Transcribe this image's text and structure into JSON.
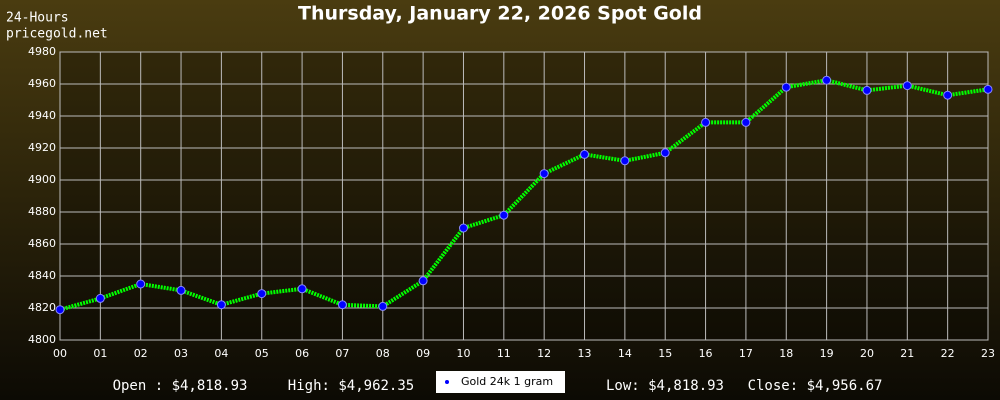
{
  "chart_data": {
    "type": "line",
    "title": "Thursday, January 22, 2026 Spot Gold",
    "corner_labels": [
      "24-Hours",
      "pricegold.net"
    ],
    "categories": [
      "00",
      "01",
      "02",
      "03",
      "04",
      "05",
      "06",
      "07",
      "08",
      "09",
      "10",
      "11",
      "12",
      "13",
      "14",
      "15",
      "16",
      "17",
      "18",
      "19",
      "20",
      "21",
      "22",
      "23"
    ],
    "series": [
      {
        "name": "Gold 24k 1 gram",
        "color": "#00ff00",
        "marker_color": "#0000ff",
        "values": [
          4818.93,
          4826,
          4835,
          4831,
          4822,
          4829,
          4832,
          4822,
          4821,
          4837,
          4870,
          4878,
          4904,
          4916,
          4912,
          4917,
          4936,
          4936,
          4958,
          4962.35,
          4956,
          4959,
          4953,
          4956.67
        ]
      }
    ],
    "ylim": [
      4800,
      4980
    ],
    "yticks": [
      4800,
      4820,
      4840,
      4860,
      4880,
      4900,
      4920,
      4940,
      4960,
      4980
    ],
    "grid": true,
    "stats": [
      "Open : $4,818.93",
      "High: $4,962.35",
      "Low: $4,818.93",
      "Close: $4,956.67"
    ]
  }
}
